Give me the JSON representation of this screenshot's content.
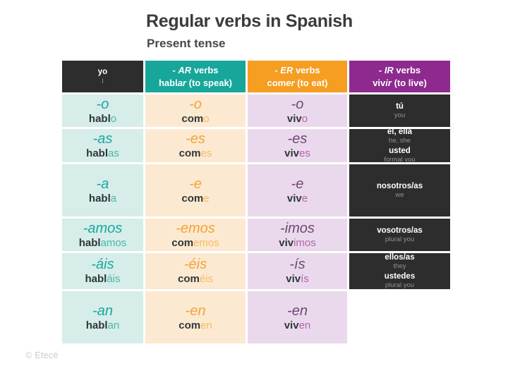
{
  "title": "Regular verbs in Spanish",
  "subtitle": "Present tense",
  "footer": "© Etecé",
  "colors": {
    "title_color": "#3b3b3b",
    "footer_color": "#cbcbcb",
    "row_label_bg": "#2d2d2d",
    "row_label_sub": "#929292",
    "stem_color": "#2f3737",
    "ar_header": "#16a79a",
    "ar_bg": "#d6edea",
    "ar_accent": "#1ba89a",
    "ar_suffix": "#4db6aa",
    "er_header": "#f59e21",
    "er_bg": "#fce9d1",
    "er_accent": "#f2a339",
    "er_suffix": "#f6ba62",
    "ir_header": "#8e2a8f",
    "ir_bg": "#ead9ec",
    "ir_accent": "#6f4873",
    "ir_suffix": "#b065ae"
  },
  "columns": [
    {
      "line1": {
        "prefix": "- ",
        "italic": "AR",
        "rest": " verbs"
      },
      "line2": {
        "stem": "habl",
        "ending": "ar",
        "rest": " (to speak)"
      }
    },
    {
      "line1": {
        "prefix": "- ",
        "italic": "ER",
        "rest": " verbs"
      },
      "line2": {
        "stem": "com",
        "ending": "er",
        "rest": " (to eat)"
      }
    },
    {
      "line1": {
        "prefix": "- ",
        "italic": "IR",
        "rest": " verbs"
      },
      "line2": {
        "stem": "viv",
        "ending": "ir",
        "rest": " (to live)"
      }
    }
  ],
  "rows": [
    {
      "label": {
        "line1": "yo",
        "line2": "I"
      },
      "ar": {
        "ending": "-o",
        "stem": "habl",
        "suffix": "o"
      },
      "er": {
        "ending": "-o",
        "stem": "com",
        "suffix": "o"
      },
      "ir": {
        "ending": "-o",
        "stem": "viv",
        "suffix": "o"
      }
    },
    {
      "label": {
        "line1": "tú",
        "line2": "you"
      },
      "ar": {
        "ending": "-as",
        "stem": "habl",
        "suffix": "as"
      },
      "er": {
        "ending": "-es",
        "stem": "com",
        "suffix": "es"
      },
      "ir": {
        "ending": "-es",
        "stem": "viv",
        "suffix": "es"
      }
    },
    {
      "label": {
        "line1": "él, ella",
        "line2": "he, she",
        "line3": "usted",
        "line4": "formal you"
      },
      "ar": {
        "ending": "-a",
        "stem": "habl",
        "suffix": "a"
      },
      "er": {
        "ending": "-e",
        "stem": "com",
        "suffix": "e"
      },
      "ir": {
        "ending": "-e",
        "stem": "viv",
        "suffix": "e"
      }
    },
    {
      "label": {
        "line1": "nosotros/as",
        "line2": "we"
      },
      "ar": {
        "ending": "-amos",
        "stem": "habl",
        "suffix": "amos"
      },
      "er": {
        "ending": "-emos",
        "stem": "com",
        "suffix": "emos"
      },
      "ir": {
        "ending": "-imos",
        "stem": "viv",
        "suffix": "imos"
      }
    },
    {
      "label": {
        "line1": "vosotros/as",
        "line2": "plural you"
      },
      "ar": {
        "ending": "-áis",
        "stem": "habl",
        "suffix": "áis"
      },
      "er": {
        "ending": "-éis",
        "stem": "com",
        "suffix": "éis"
      },
      "ir": {
        "ending": "-ís",
        "stem": "viv",
        "suffix": "ís"
      }
    },
    {
      "label": {
        "line1": "ellos/as",
        "line2": "they",
        "line3": "ustedes",
        "line4": "plural you"
      },
      "ar": {
        "ending": "-an",
        "stem": "habl",
        "suffix": "an"
      },
      "er": {
        "ending": "-en",
        "stem": "com",
        "suffix": "en"
      },
      "ir": {
        "ending": "-en",
        "stem": "viv",
        "suffix": "en"
      }
    }
  ]
}
